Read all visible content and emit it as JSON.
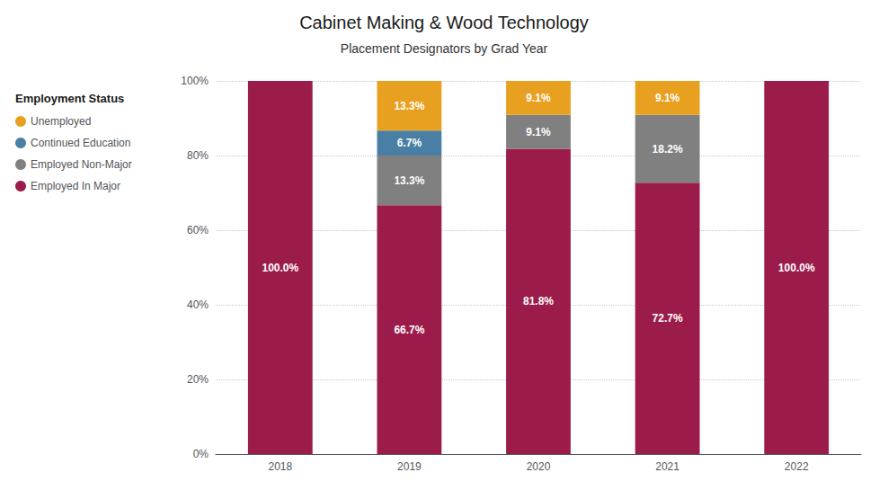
{
  "chart_data": {
    "type": "bar",
    "stacked": true,
    "title": "Cabinet Making & Wood Technology",
    "subtitle": "Placement Designators by Grad Year",
    "legend_title": "Employment Status",
    "categories": [
      "2018",
      "2019",
      "2020",
      "2021",
      "2022"
    ],
    "series": [
      {
        "name": "Employed In Major",
        "color": "#9B1B4A",
        "values": [
          100.0,
          66.7,
          81.8,
          72.7,
          100.0
        ],
        "value_labels": [
          "100.0%",
          "66.7%",
          "81.8%",
          "72.7%",
          "100.0%"
        ]
      },
      {
        "name": "Employed Non-Major",
        "color": "#808080",
        "values": [
          0.0,
          13.3,
          9.1,
          18.2,
          0.0
        ],
        "value_labels": [
          null,
          "13.3%",
          "9.1%",
          "18.2%",
          null
        ]
      },
      {
        "name": "Continued Education",
        "color": "#4A7FA5",
        "values": [
          0.0,
          6.7,
          0.0,
          0.0,
          0.0
        ],
        "value_labels": [
          null,
          "6.7%",
          null,
          null,
          null
        ]
      },
      {
        "name": "Unemployed",
        "color": "#E8A020",
        "values": [
          0.0,
          13.3,
          9.1,
          9.1,
          0.0
        ],
        "value_labels": [
          null,
          "13.3%",
          "9.1%",
          "9.1%",
          null
        ]
      }
    ],
    "ylim": [
      0,
      100
    ],
    "yticks": [
      {
        "value": 0,
        "label": "0%"
      },
      {
        "value": 20,
        "label": "20%"
      },
      {
        "value": 40,
        "label": "40%"
      },
      {
        "value": 60,
        "label": "60%"
      },
      {
        "value": 80,
        "label": "80%"
      },
      {
        "value": 100,
        "label": "100%"
      }
    ],
    "grid": true,
    "legend": "left",
    "data_labels": true
  }
}
